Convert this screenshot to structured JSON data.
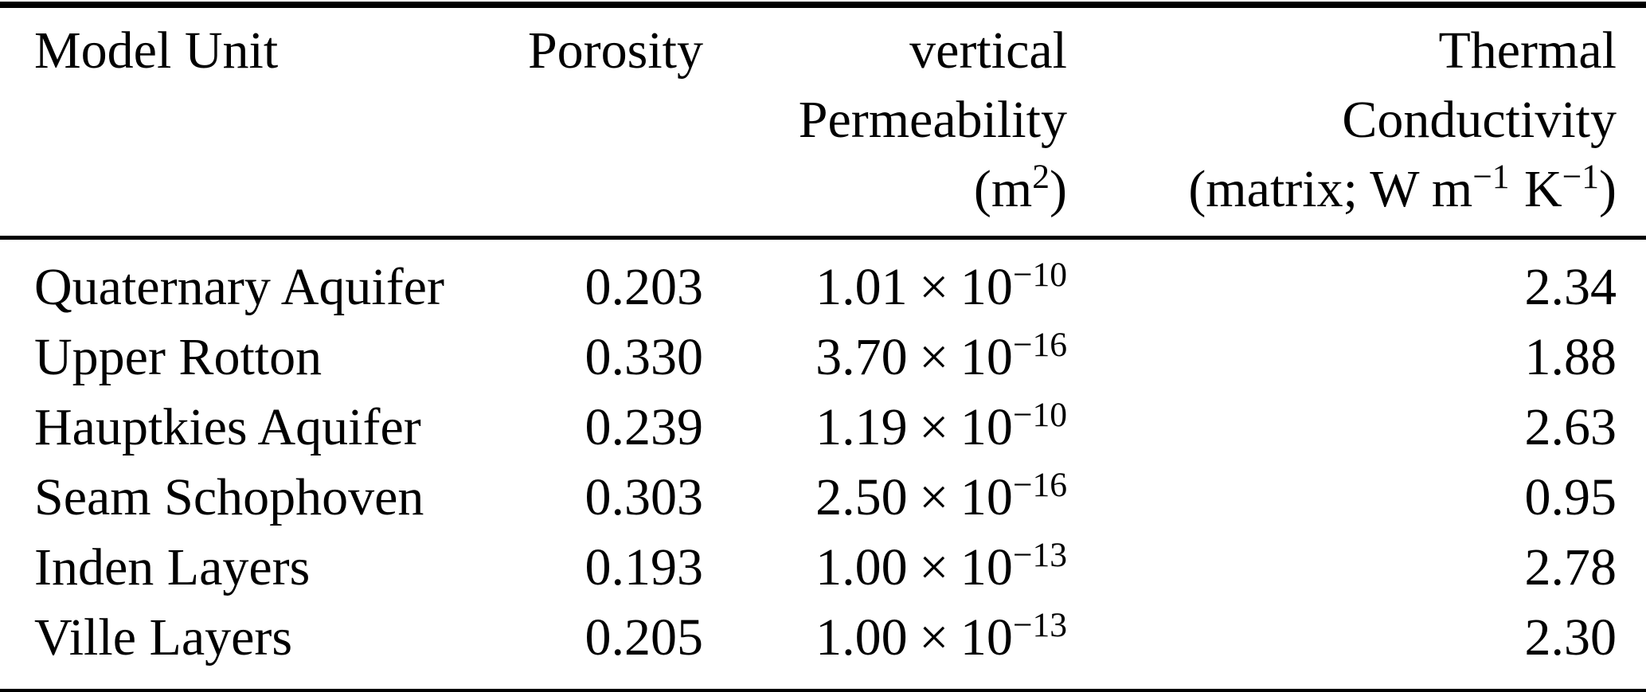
{
  "page": {
    "background_color": "#ffffff",
    "text_color": "#000000",
    "rule_color": "#000000"
  },
  "table": {
    "header": {
      "model_unit": "Model Unit",
      "porosity": "Porosity",
      "permeability_line1": "vertical",
      "permeability_line2": "Permeability",
      "permeability_unit_open": "(m",
      "permeability_unit_exp": "2",
      "permeability_unit_close": ")",
      "conductivity_line1": "Thermal",
      "conductivity_line2": "Conductivity",
      "conductivity_unit_pre": "(matrix; W m",
      "conductivity_unit_exp1": "−1",
      "conductivity_unit_mid": "K",
      "conductivity_unit_exp2": "−1",
      "conductivity_unit_close": ")"
    },
    "rows": [
      {
        "unit": "Quaternary Aquifer",
        "porosity": "0.203",
        "perm_coeff": "1.01",
        "perm_times": "×",
        "perm_base": "10",
        "perm_exp": "−10",
        "conductivity": "2.34"
      },
      {
        "unit": "Upper Rotton",
        "porosity": "0.330",
        "perm_coeff": "3.70",
        "perm_times": "×",
        "perm_base": "10",
        "perm_exp": "−16",
        "conductivity": "1.88"
      },
      {
        "unit": "Hauptkies Aquifer",
        "porosity": "0.239",
        "perm_coeff": "1.19",
        "perm_times": "×",
        "perm_base": "10",
        "perm_exp": "−10",
        "conductivity": "2.63"
      },
      {
        "unit": "Seam Schophoven",
        "porosity": "0.303",
        "perm_coeff": "2.50",
        "perm_times": "×",
        "perm_base": "10",
        "perm_exp": "−16",
        "conductivity": "0.95"
      },
      {
        "unit": "Inden Layers",
        "porosity": "0.193",
        "perm_coeff": "1.00",
        "perm_times": "×",
        "perm_base": "10",
        "perm_exp": "−13",
        "conductivity": "2.78"
      },
      {
        "unit": "Ville Layers",
        "porosity": "0.205",
        "perm_coeff": "1.00",
        "perm_times": "×",
        "perm_base": "10",
        "perm_exp": "−13",
        "conductivity": "2.30"
      }
    ]
  }
}
